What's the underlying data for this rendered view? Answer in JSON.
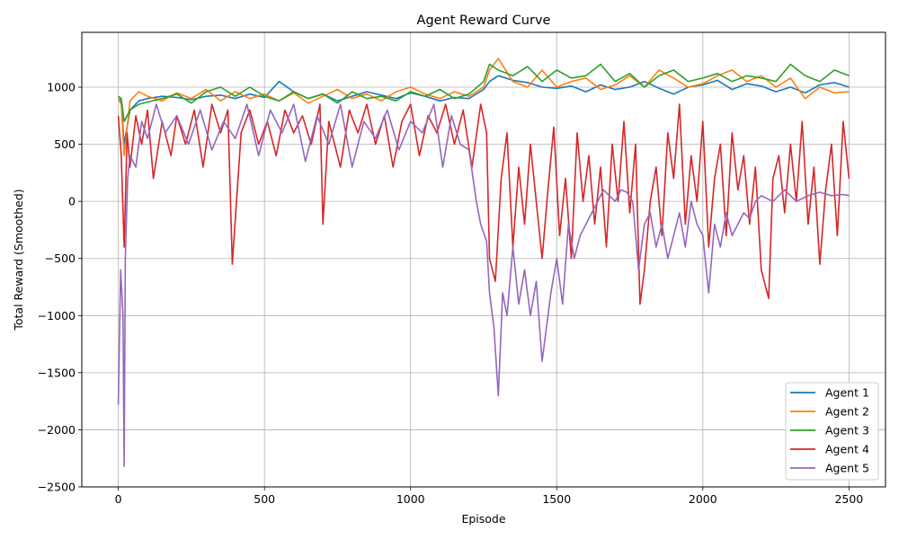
{
  "chart_data": {
    "type": "line",
    "title": "Agent Reward Curve",
    "xlabel": "Episode",
    "ylabel": "Total Reward (Smoothed)",
    "xlim": [
      -125,
      2625
    ],
    "ylim": [
      -2500,
      1480
    ],
    "xticks": [
      0,
      500,
      1000,
      1500,
      2000,
      2500
    ],
    "yticks": [
      -2500,
      -2000,
      -1500,
      -1000,
      -500,
      0,
      500,
      1000
    ],
    "grid": true,
    "legend_position": "bottom-right",
    "series": [
      {
        "name": "Agent 1",
        "color": "#1f77b4",
        "x": [
          0,
          10,
          20,
          40,
          70,
          100,
          150,
          200,
          250,
          300,
          350,
          400,
          450,
          500,
          550,
          600,
          650,
          700,
          750,
          800,
          850,
          900,
          950,
          1000,
          1050,
          1100,
          1150,
          1200,
          1250,
          1270,
          1300,
          1350,
          1400,
          1450,
          1500,
          1550,
          1600,
          1650,
          1700,
          1750,
          1800,
          1850,
          1900,
          1950,
          2000,
          2050,
          2100,
          2150,
          2200,
          2250,
          2300,
          2350,
          2400,
          2450,
          2500
        ],
        "y": [
          900,
          880,
          500,
          800,
          880,
          900,
          920,
          910,
          890,
          920,
          930,
          900,
          940,
          910,
          1050,
          960,
          900,
          940,
          880,
          920,
          960,
          930,
          900,
          950,
          920,
          880,
          910,
          900,
          980,
          1050,
          1100,
          1060,
          1040,
          1000,
          990,
          1010,
          960,
          1020,
          980,
          1000,
          1050,
          990,
          940,
          1000,
          1020,
          1060,
          980,
          1030,
          1010,
          960,
          1000,
          950,
          1020,
          1040,
          1000
        ]
      },
      {
        "name": "Agent 2",
        "color": "#ff7f0e",
        "x": [
          0,
          10,
          20,
          40,
          70,
          100,
          150,
          200,
          250,
          300,
          350,
          400,
          450,
          500,
          550,
          600,
          650,
          700,
          750,
          800,
          850,
          900,
          950,
          1000,
          1050,
          1100,
          1150,
          1200,
          1250,
          1270,
          1300,
          1350,
          1400,
          1450,
          1500,
          1550,
          1600,
          1650,
          1700,
          1750,
          1800,
          1850,
          1900,
          1950,
          2000,
          2050,
          2100,
          2150,
          2200,
          2250,
          2300,
          2350,
          2400,
          2450,
          2500
        ],
        "y": [
          900,
          850,
          400,
          880,
          960,
          920,
          880,
          950,
          900,
          980,
          880,
          960,
          900,
          940,
          880,
          950,
          860,
          920,
          980,
          900,
          940,
          880,
          960,
          1000,
          940,
          900,
          960,
          920,
          1000,
          1150,
          1250,
          1050,
          1000,
          1150,
          1000,
          1050,
          1080,
          980,
          1020,
          1100,
          1000,
          1150,
          1080,
          1000,
          1030,
          1100,
          1150,
          1050,
          1100,
          1000,
          1080,
          900,
          1000,
          950,
          960
        ]
      },
      {
        "name": "Agent 3",
        "color": "#2ca02c",
        "x": [
          0,
          10,
          20,
          40,
          70,
          100,
          150,
          200,
          250,
          300,
          350,
          400,
          450,
          500,
          550,
          600,
          650,
          700,
          750,
          800,
          850,
          900,
          950,
          1000,
          1050,
          1100,
          1150,
          1200,
          1250,
          1270,
          1300,
          1350,
          1400,
          1450,
          1500,
          1550,
          1600,
          1650,
          1700,
          1750,
          1800,
          1850,
          1900,
          1950,
          2000,
          2050,
          2100,
          2150,
          2200,
          2250,
          2300,
          2350,
          2400,
          2450,
          2500
        ],
        "y": [
          920,
          900,
          700,
          800,
          850,
          870,
          900,
          940,
          860,
          960,
          1000,
          920,
          1000,
          920,
          880,
          960,
          900,
          940,
          860,
          960,
          900,
          920,
          880,
          960,
          920,
          980,
          900,
          940,
          1050,
          1200,
          1150,
          1100,
          1180,
          1050,
          1150,
          1080,
          1100,
          1200,
          1050,
          1120,
          1000,
          1100,
          1150,
          1050,
          1080,
          1120,
          1050,
          1100,
          1080,
          1050,
          1200,
          1100,
          1050,
          1150,
          1100
        ]
      },
      {
        "name": "Agent 4",
        "color": "#d62728",
        "x": [
          0,
          10,
          20,
          30,
          40,
          60,
          80,
          100,
          120,
          150,
          180,
          200,
          230,
          260,
          290,
          320,
          350,
          375,
          390,
          420,
          450,
          480,
          510,
          540,
          570,
          600,
          630,
          660,
          690,
          700,
          720,
          760,
          790,
          820,
          850,
          880,
          910,
          940,
          970,
          1000,
          1030,
          1060,
          1090,
          1120,
          1150,
          1180,
          1210,
          1240,
          1260,
          1270,
          1290,
          1310,
          1330,
          1350,
          1370,
          1390,
          1410,
          1430,
          1450,
          1470,
          1490,
          1510,
          1530,
          1550,
          1570,
          1590,
          1610,
          1630,
          1650,
          1670,
          1690,
          1710,
          1730,
          1750,
          1770,
          1785,
          1800,
          1820,
          1840,
          1860,
          1880,
          1900,
          1920,
          1940,
          1960,
          1980,
          2000,
          2020,
          2040,
          2060,
          2080,
          2100,
          2120,
          2140,
          2160,
          2180,
          2200,
          2225,
          2240,
          2260,
          2280,
          2300,
          2320,
          2340,
          2360,
          2380,
          2400,
          2420,
          2440,
          2460,
          2480,
          2500
        ],
        "y": [
          750,
          400,
          -400,
          600,
          300,
          750,
          500,
          800,
          200,
          700,
          400,
          750,
          500,
          800,
          300,
          850,
          600,
          800,
          -550,
          600,
          800,
          500,
          700,
          400,
          800,
          600,
          750,
          500,
          850,
          -200,
          700,
          300,
          800,
          600,
          850,
          500,
          750,
          300,
          700,
          850,
          400,
          750,
          600,
          850,
          500,
          800,
          300,
          850,
          600,
          -500,
          -700,
          200,
          600,
          -400,
          300,
          -200,
          500,
          0,
          -500,
          100,
          650,
          -300,
          200,
          -500,
          600,
          0,
          400,
          -200,
          300,
          -400,
          500,
          0,
          700,
          -100,
          500,
          -900,
          -600,
          0,
          300,
          -300,
          600,
          200,
          850,
          -200,
          400,
          0,
          700,
          -400,
          200,
          500,
          -300,
          600,
          100,
          400,
          -200,
          300,
          -600,
          -850,
          200,
          400,
          -100,
          500,
          0,
          700,
          -200,
          300,
          -550,
          100,
          500,
          -300,
          700,
          200
        ]
      },
      {
        "name": "Agent 5",
        "color": "#9467bd",
        "x": [
          0,
          8,
          16,
          20,
          24,
          32,
          40,
          60,
          80,
          100,
          130,
          160,
          200,
          240,
          280,
          320,
          360,
          400,
          440,
          480,
          520,
          560,
          600,
          640,
          680,
          720,
          760,
          800,
          840,
          880,
          920,
          960,
          1000,
          1040,
          1080,
          1110,
          1140,
          1170,
          1200,
          1225,
          1240,
          1260,
          1270,
          1285,
          1300,
          1315,
          1330,
          1350,
          1370,
          1390,
          1410,
          1430,
          1450,
          1465,
          1480,
          1500,
          1520,
          1540,
          1560,
          1580,
          1600,
          1620,
          1640,
          1660,
          1680,
          1700,
          1720,
          1740,
          1760,
          1780,
          1800,
          1820,
          1840,
          1860,
          1880,
          1900,
          1920,
          1940,
          1960,
          1980,
          2000,
          2020,
          2040,
          2060,
          2080,
          2100,
          2120,
          2140,
          2160,
          2180,
          2200,
          2240,
          2280,
          2320,
          2360,
          2400,
          2440,
          2480,
          2500
        ],
        "y": [
          -1780,
          -600,
          -1000,
          -2320,
          -500,
          200,
          400,
          300,
          700,
          550,
          850,
          600,
          750,
          500,
          800,
          450,
          700,
          550,
          850,
          400,
          800,
          600,
          850,
          350,
          750,
          500,
          850,
          300,
          700,
          550,
          800,
          450,
          700,
          600,
          850,
          300,
          750,
          500,
          450,
          0,
          -200,
          -350,
          -800,
          -1100,
          -1700,
          -800,
          -1000,
          -400,
          -900,
          -600,
          -1000,
          -700,
          -1400,
          -1100,
          -800,
          -500,
          -900,
          -200,
          -500,
          -300,
          -200,
          -100,
          0,
          100,
          50,
          0,
          100,
          80,
          0,
          -600,
          -200,
          -100,
          -400,
          -200,
          -500,
          -300,
          -100,
          -400,
          0,
          -200,
          -300,
          -800,
          -200,
          -400,
          -100,
          -300,
          -200,
          -100,
          -150,
          0,
          50,
          0,
          100,
          0,
          50,
          80,
          50,
          60,
          50
        ]
      }
    ]
  }
}
